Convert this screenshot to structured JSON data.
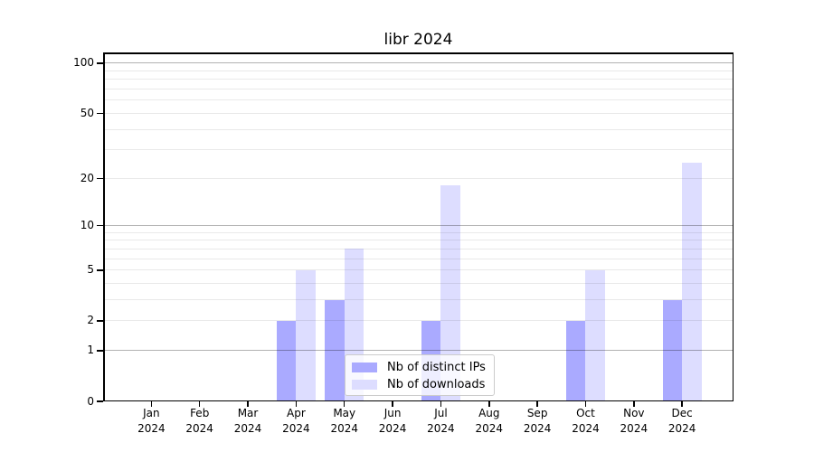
{
  "title": "libr 2024",
  "chart_data": {
    "type": "bar",
    "categories": [
      "Jan 2024",
      "Feb 2024",
      "Mar 2024",
      "Apr 2024",
      "May 2024",
      "Jun 2024",
      "Jul 2024",
      "Aug 2024",
      "Sep 2024",
      "Oct 2024",
      "Nov 2024",
      "Dec 2024"
    ],
    "months": [
      "Jan",
      "Feb",
      "Mar",
      "Apr",
      "May",
      "Jun",
      "Jul",
      "Aug",
      "Sep",
      "Oct",
      "Nov",
      "Dec"
    ],
    "year_label": "2024",
    "series": [
      {
        "name": "Nb of distinct IPs",
        "color": "#aaaaff",
        "values": [
          0,
          0,
          0,
          2,
          3,
          0,
          2,
          0,
          0,
          2,
          0,
          3
        ]
      },
      {
        "name": "Nb of downloads",
        "color": "#ddddff",
        "values": [
          0,
          0,
          0,
          5,
          7,
          0,
          18,
          0,
          0,
          5,
          0,
          25
        ]
      }
    ],
    "y_axis": {
      "scale": "log1p",
      "tick_values": [
        0,
        1,
        2,
        5,
        10,
        20,
        50,
        100
      ],
      "tick_labels": [
        "0",
        "1",
        "2",
        "5",
        "10",
        "20",
        "50",
        "100"
      ],
      "major_grid_values": [
        1,
        10,
        100
      ],
      "minor_grid_values": [
        2,
        3,
        4,
        5,
        6,
        7,
        8,
        9,
        20,
        30,
        40,
        50,
        60,
        70,
        80,
        90
      ],
      "ylim": [
        0,
        116
      ]
    },
    "xlabel": "",
    "ylabel": "",
    "grid": true,
    "legend_position": "lower center"
  },
  "legend": {
    "items": [
      {
        "label": "Nb of distinct IPs",
        "color": "#aaaaff"
      },
      {
        "label": "Nb of downloads",
        "color": "#ddddff"
      }
    ]
  },
  "colors": {
    "background": "#ffffff",
    "spine": "#000000",
    "text": "#000000",
    "legend_border": "#cccccc"
  }
}
